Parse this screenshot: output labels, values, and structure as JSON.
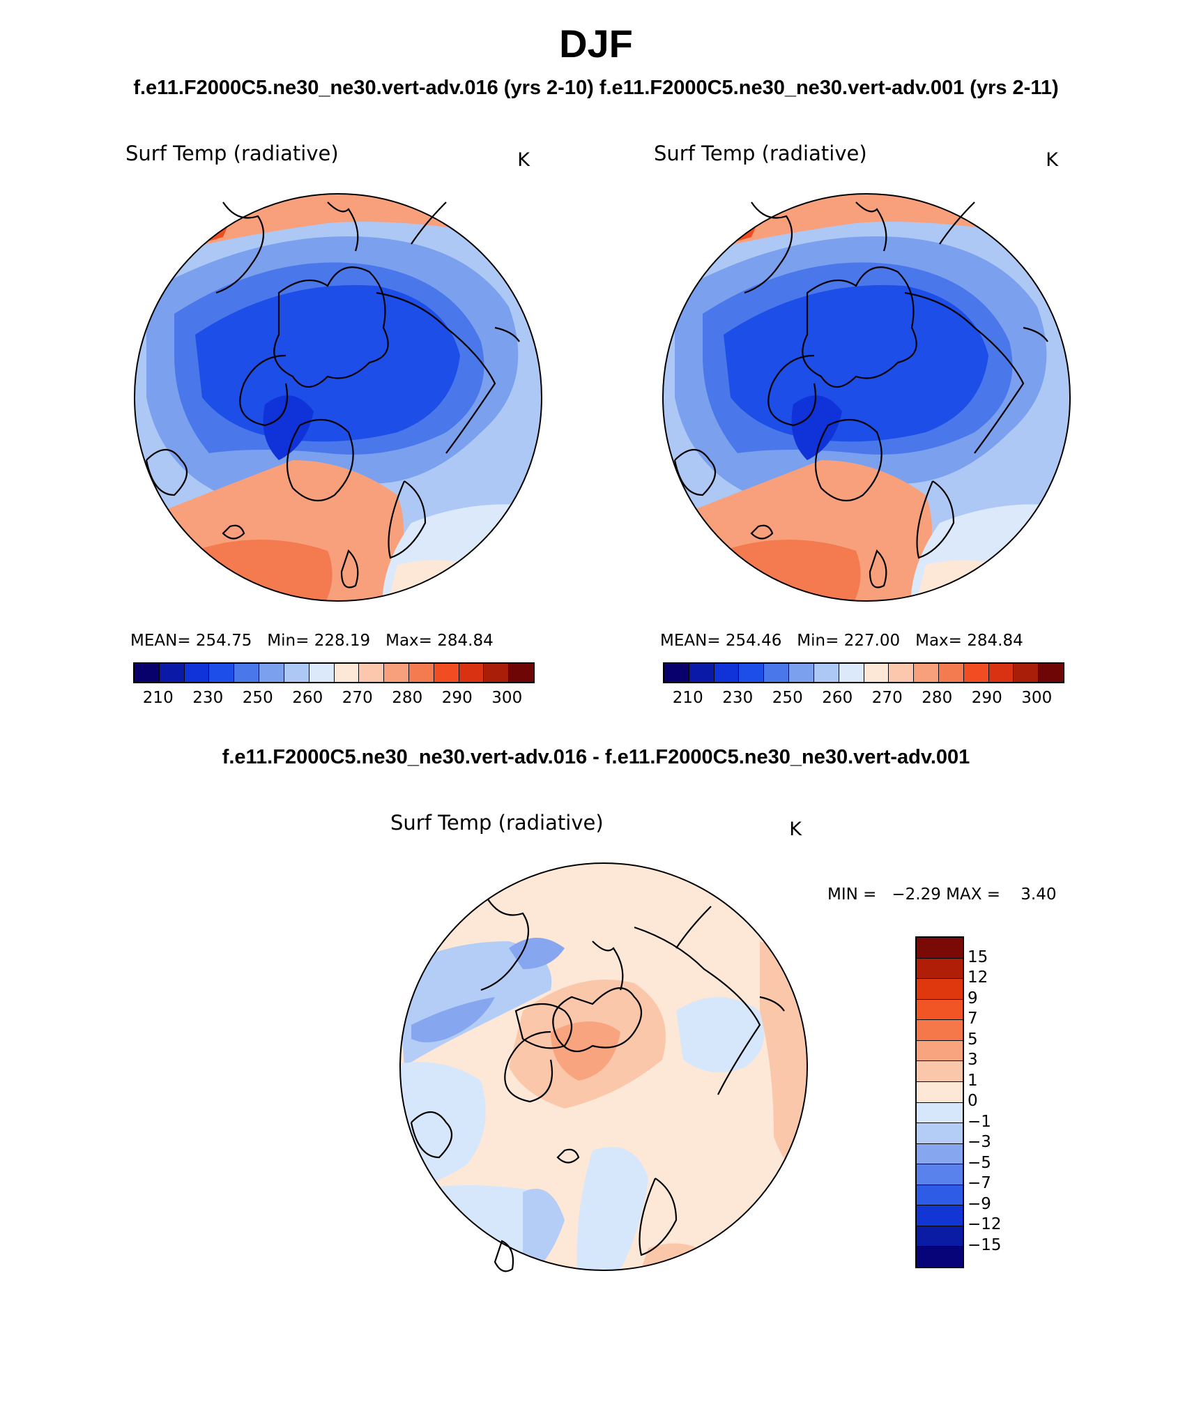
{
  "title": "DJF",
  "case_titles": "f.e11.F2000C5.ne30_ne30.vert-adv.016 (yrs 2-10) f.e11.F2000C5.ne30_ne30.vert-adv.001 (yrs 2-11)",
  "diff_title": "f.e11.F2000C5.ne30_ne30.vert-adv.016 - f.e11.F2000C5.ne30_ne30.vert-adv.001",
  "panels": [
    {
      "variable": "Surf Temp (radiative)",
      "units": "K",
      "stats": "MEAN= 254.75   Min= 228.19   Max= 284.84"
    },
    {
      "variable": "Surf Temp (radiative)",
      "units": "K",
      "stats": "MEAN= 254.46   Min= 227.00   Max= 284.84"
    },
    {
      "variable": "Surf Temp (radiative)",
      "units": "K",
      "stats": "MIN =   −2.29 MAX =    3.40"
    }
  ],
  "abs_colorbar": {
    "labels": [
      "210",
      "230",
      "250",
      "260",
      "270",
      "280",
      "290",
      "300"
    ],
    "colors": [
      "#08006b",
      "#0b1aa6",
      "#0f32d9",
      "#1e4ee8",
      "#4a78ea",
      "#7aa0ee",
      "#adc8f5",
      "#dbe9fb",
      "#fde8d8",
      "#fbc8ad",
      "#f8a07b",
      "#f47a4f",
      "#f04e22",
      "#d83212",
      "#a81e08",
      "#6d0605"
    ]
  },
  "diff_colorbar": {
    "labels": [
      "15",
      "12",
      "9",
      "7",
      "5",
      "3",
      "1",
      "0",
      "−1",
      "−3",
      "−5",
      "−7",
      "−9",
      "−12",
      "−15"
    ],
    "colors": [
      "#7a0a05",
      "#b01e08",
      "#e0380e",
      "#f25525",
      "#f4784a",
      "#f8a47e",
      "#fbc7ab",
      "#fde7d6",
      "#d6e7fb",
      "#b3cdf6",
      "#86a7ef",
      "#5a82ec",
      "#2f5ce6",
      "#1236d4",
      "#0a1ca3",
      "#07047a"
    ]
  }
}
